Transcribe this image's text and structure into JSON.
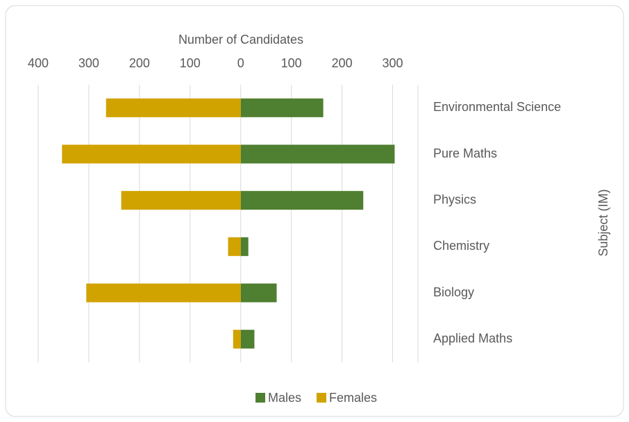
{
  "chart_data": {
    "type": "bar",
    "orientation": "horizontal",
    "stacked": true,
    "x_label": "Number of Candidates",
    "y_label": "Subject (IM)",
    "categories": [
      "Environmental Science",
      "Pure Maths",
      "Physics",
      "Chemistry",
      "Biology",
      "Applied Maths"
    ],
    "series": [
      {
        "name": "Males",
        "color": "#4f7f30",
        "values": [
          163,
          304,
          242,
          15,
          71,
          27
        ]
      },
      {
        "name": "Females",
        "color": "#d1a300",
        "values": [
          -266,
          -353,
          -236,
          -25,
          -305,
          -15
        ]
      }
    ],
    "xlim": [
      -400,
      350
    ],
    "xticks": [
      {
        "value": -400,
        "label": "400"
      },
      {
        "value": -300,
        "label": "300"
      },
      {
        "value": -200,
        "label": "200"
      },
      {
        "value": -100,
        "label": "100"
      },
      0,
      100,
      200,
      300
    ],
    "grid": true,
    "legend": "bottom"
  }
}
